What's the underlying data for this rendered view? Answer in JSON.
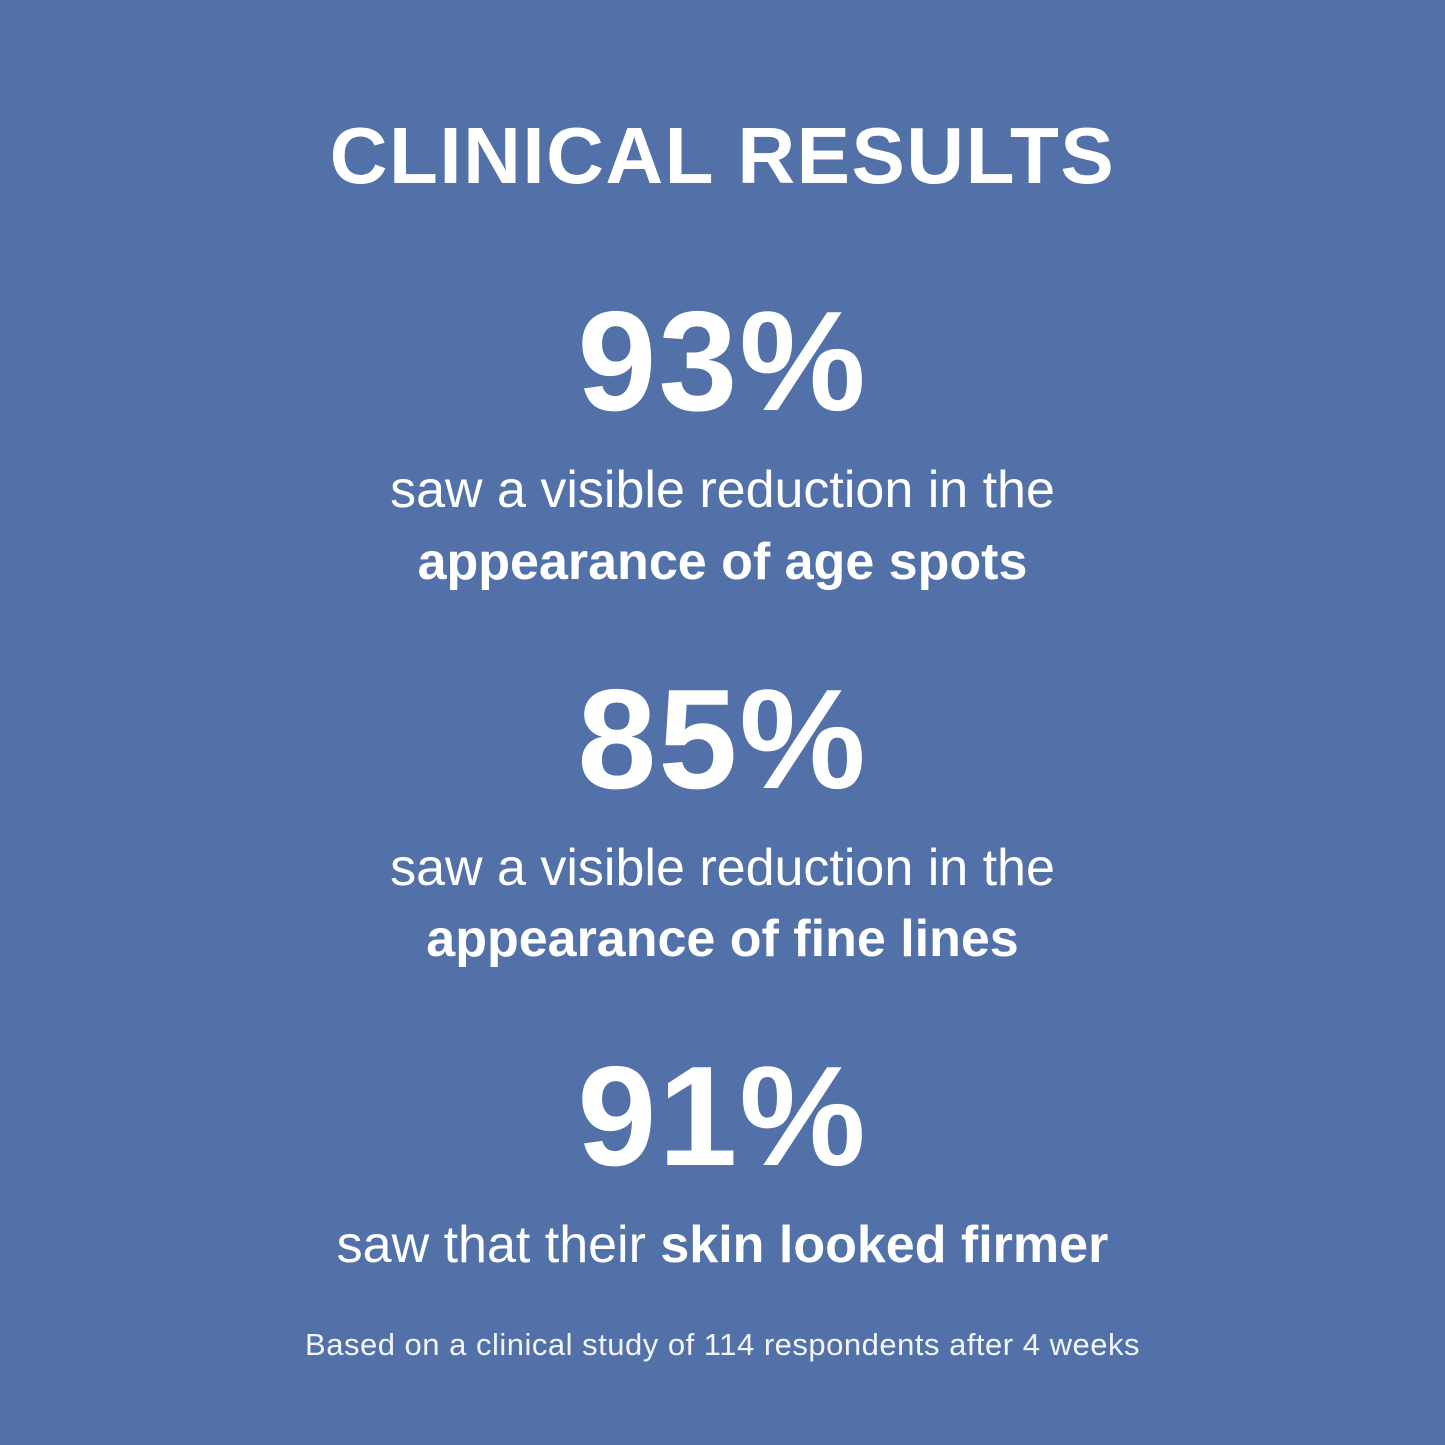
{
  "page": {
    "background_color": "#5271A9",
    "text_color": "#FFFFFF"
  },
  "title": "CLINICAL RESULTS",
  "stats": [
    {
      "value": "93%",
      "caption_line1": "saw a visible reduction in the",
      "caption_line2": "appearance of age spots"
    },
    {
      "value": "85%",
      "caption_line1": "saw a visible reduction in the",
      "caption_line2": "appearance of fine lines"
    },
    {
      "value": "91%",
      "caption_prefix": "saw that their ",
      "caption_bold": "skin looked firmer"
    }
  ],
  "footnote": "Based on a clinical study of 114 respondents after 4 weeks"
}
